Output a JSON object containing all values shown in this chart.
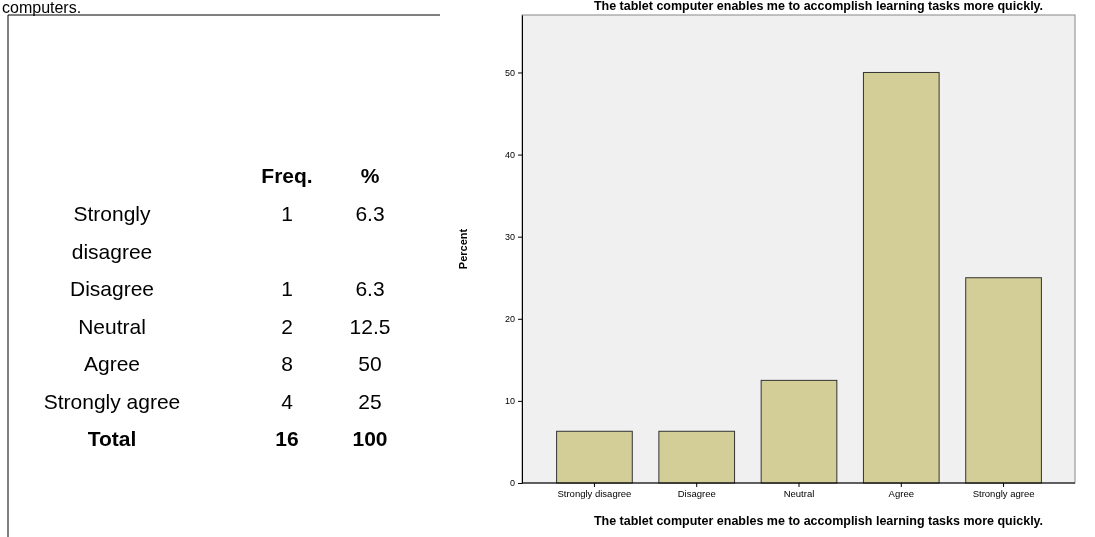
{
  "chart_data": {
    "type": "bar",
    "title": "The tablet computer enables me to accomplish learning tasks more quickly.",
    "xlabel": "The tablet computer enables me to accomplish learning tasks more quickly.",
    "ylabel": "Percent",
    "categories": [
      "Strongly disagree",
      "Disagree",
      "Neutral",
      "Agree",
      "Strongly agree"
    ],
    "values": [
      6.3,
      6.3,
      12.5,
      50,
      25
    ],
    "color": "#d3ce97",
    "ylim": [
      0,
      57
    ],
    "yticks": [
      0,
      10,
      20,
      30,
      40,
      50
    ],
    "grid": false,
    "annotations": [
      "computers.",
      "Freq.",
      "%",
      "1",
      "1",
      "2",
      "8",
      "4",
      "6.3",
      "6.3",
      "12.5",
      "50",
      "25",
      "Total",
      "16",
      "100"
    ]
  }
}
